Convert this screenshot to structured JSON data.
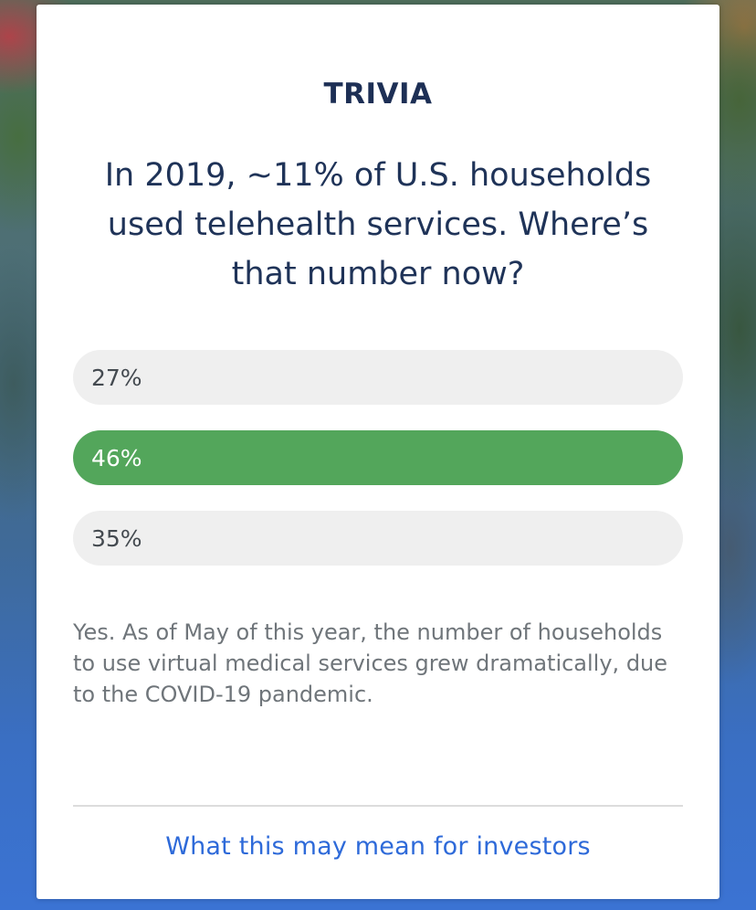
{
  "card": {
    "title": "TRIVIA",
    "question": "In 2019, ~11% of U.S. households used telehealth services. Where’s that number now?",
    "options": [
      {
        "label": "27%",
        "selected": false
      },
      {
        "label": "46%",
        "selected": true
      },
      {
        "label": "35%",
        "selected": false
      }
    ],
    "answer_text": "Yes. As of May of this year, the number of households to use virtual medical services grew dramatically, due to the COVID-19 pandemic.",
    "link_label": "What this may mean for investors"
  },
  "colors": {
    "correct": "#53a65b",
    "option_bg": "#efefef",
    "link": "#2e6ad9",
    "title": "#1d2f55"
  }
}
